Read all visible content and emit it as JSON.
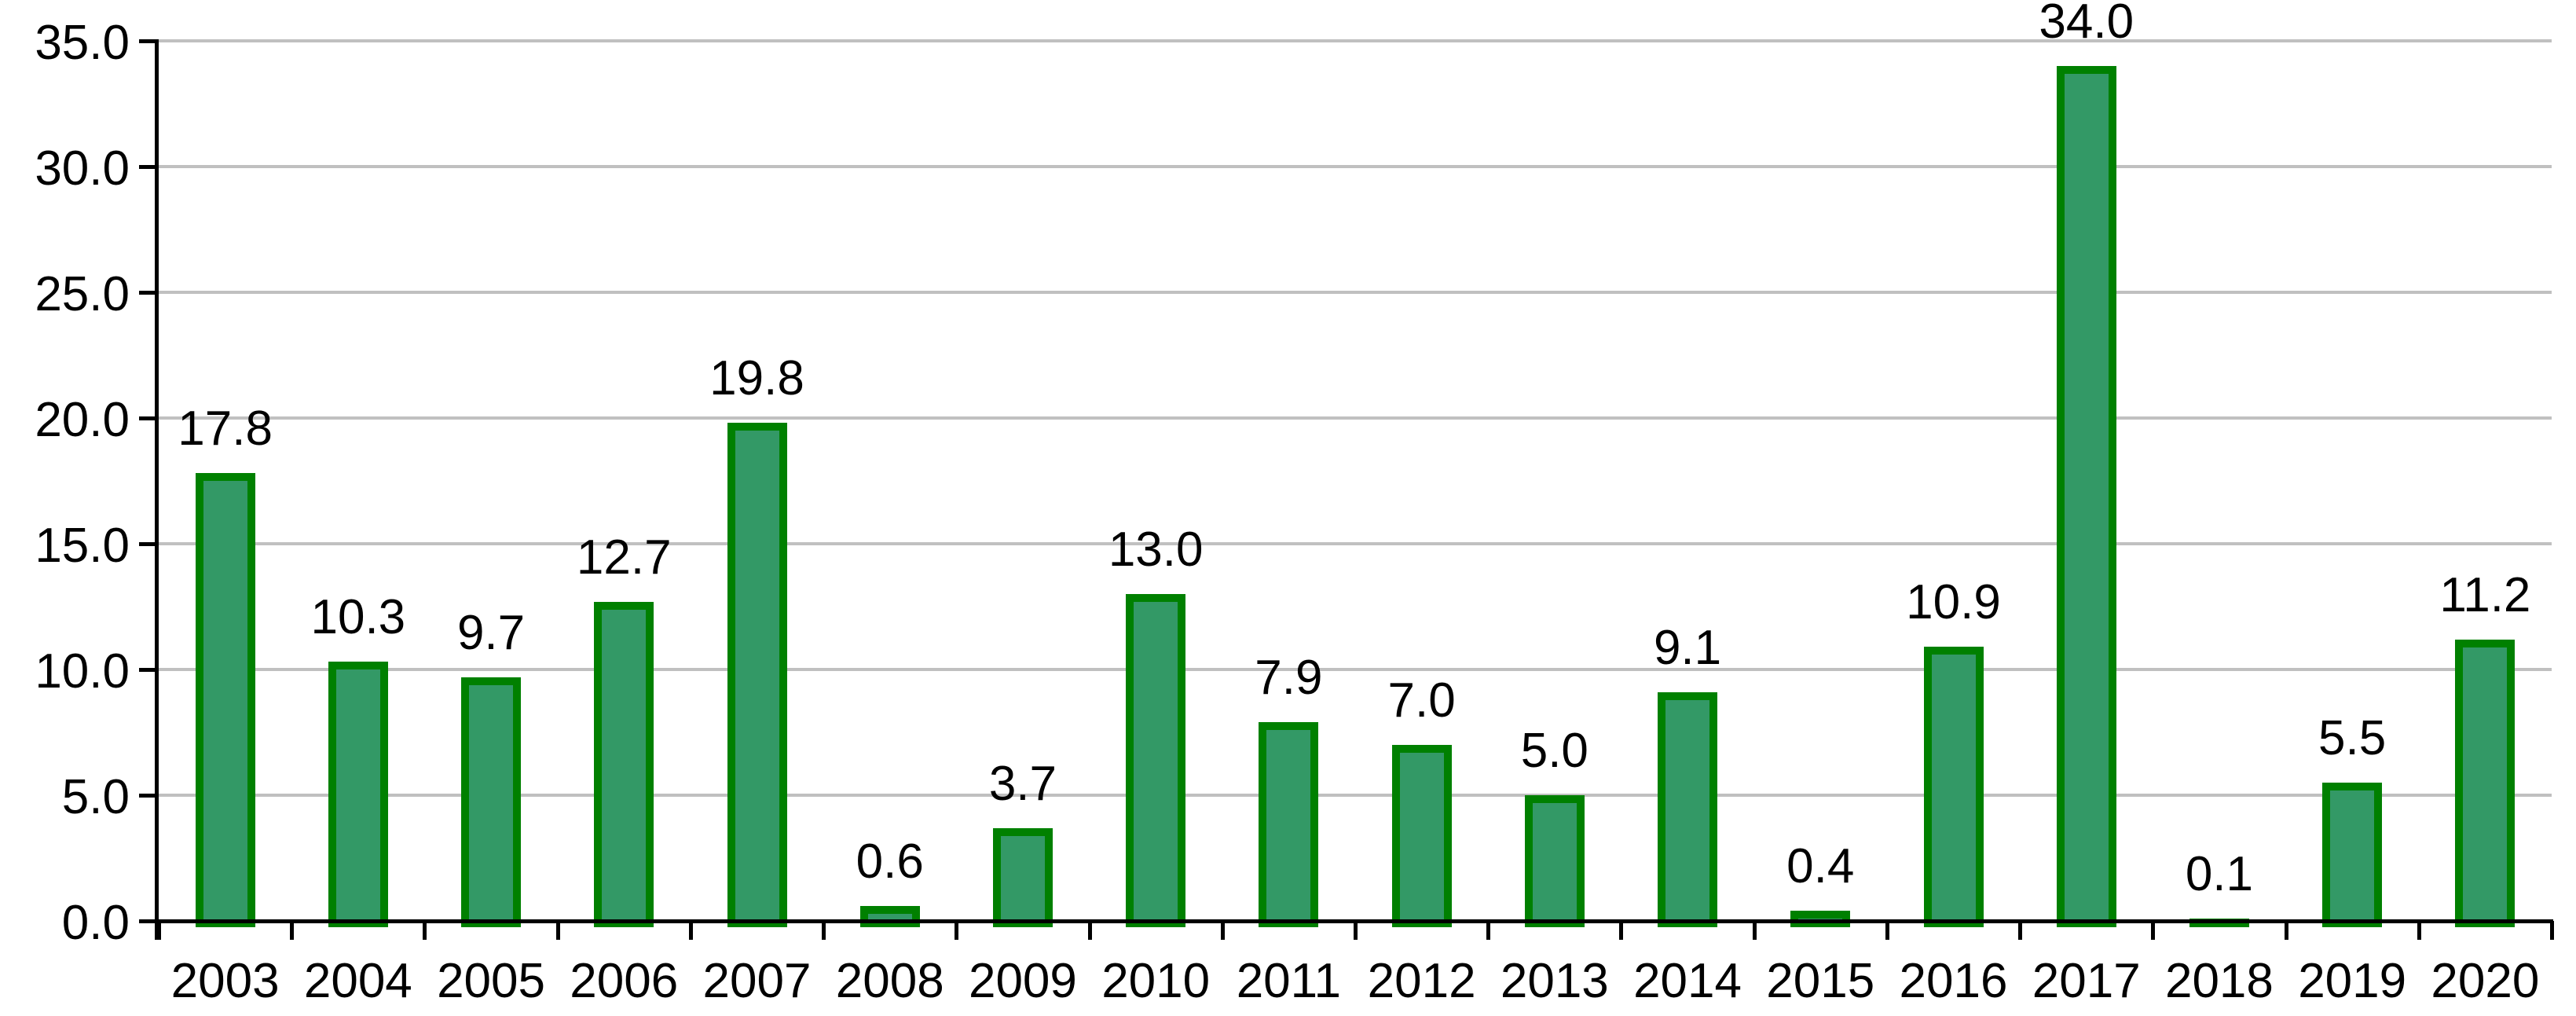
{
  "chart_data": {
    "type": "bar",
    "title": "",
    "xlabel": "",
    "ylabel": "",
    "categories": [
      "2003",
      "2004",
      "2005",
      "2006",
      "2007",
      "2008",
      "2009",
      "2010",
      "2011",
      "2012",
      "2013",
      "2014",
      "2015",
      "2016",
      "2017",
      "2018",
      "2019",
      "2020"
    ],
    "values": [
      17.8,
      10.3,
      9.7,
      12.7,
      19.8,
      0.6,
      3.7,
      13.0,
      7.9,
      7.0,
      5.0,
      9.1,
      0.4,
      10.9,
      34.0,
      0.1,
      5.5,
      11.2
    ],
    "data_labels": [
      "17.8",
      "10.3",
      "9.7",
      "12.7",
      "19.8",
      "0.6",
      "3.7",
      "13.0",
      "7.9",
      "7.0",
      "5.0",
      "9.1",
      "0.4",
      "10.9",
      "34.0",
      "0.1",
      "5.5",
      "11.2"
    ],
    "ylim": [
      0,
      35
    ],
    "ytick_step": 5,
    "ytick_labels": [
      "0.0",
      "5.0",
      "10.0",
      "15.0",
      "20.0",
      "25.0",
      "30.0",
      "35.0"
    ],
    "grid": true,
    "legend_position": "none",
    "colors": {
      "bar_fill": "#339966",
      "bar_border": "#008000",
      "gridline": "#C0C0C0",
      "axis": "#000000",
      "text": "#000000",
      "background": "#FFFFFF"
    }
  }
}
